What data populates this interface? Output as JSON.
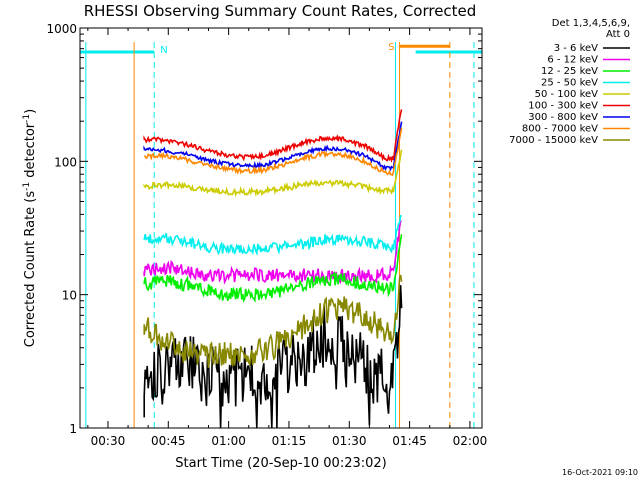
{
  "chart_data": {
    "type": "line",
    "title": "RHESSI Observing Summary Count Rates, Corrected",
    "xlabel": "Start Time (20-Sep-10 00:23:02)",
    "ylabel_main": "Corrected Count Rate (s",
    "ylabel_sup1": "-1",
    "ylabel_mid": " detector",
    "ylabel_sup2": "-1",
    "ylabel_end": ")",
    "x_unit": "minutes since 00:00 UT",
    "xlim": [
      23.05,
      123.0
    ],
    "ylim": [
      1,
      1000
    ],
    "yscale": "log",
    "x_ticks": [
      {
        "value": 30,
        "label": "00:30"
      },
      {
        "value": 45,
        "label": "00:45"
      },
      {
        "value": 60,
        "label": "01:00"
      },
      {
        "value": 75,
        "label": "01:15"
      },
      {
        "value": 90,
        "label": "01:30"
      },
      {
        "value": 105,
        "label": "01:45"
      },
      {
        "value": 120,
        "label": "02:00"
      }
    ],
    "y_ticks": [
      {
        "value": 1,
        "label": "1"
      },
      {
        "value": 10,
        "label": "10"
      },
      {
        "value": 100,
        "label": "100"
      },
      {
        "value": 1000,
        "label": "1000"
      }
    ],
    "legend_header": [
      "Det 1,3,4,5,6,9,",
      "Att 0"
    ],
    "legend_position": "right",
    "series": [
      {
        "name": "3 - 6 keV",
        "color": "#000000",
        "x": [
          39,
          44,
          49,
          54,
          59,
          64,
          69,
          74,
          79,
          84,
          88,
          92,
          96,
          101,
          103
        ],
        "y": [
          2.6,
          3.0,
          3.2,
          2.4,
          2.4,
          2.6,
          2.2,
          2.8,
          3.5,
          5.0,
          5.0,
          3.5,
          2.6,
          2.6,
          12
        ]
      },
      {
        "name": "6 - 12 keV",
        "color": "#ee00ee",
        "x": [
          39,
          44,
          49,
          54,
          59,
          64,
          69,
          74,
          79,
          84,
          89,
          94,
          99,
          101,
          103
        ],
        "y": [
          15,
          16,
          15,
          14,
          14,
          14,
          14,
          14,
          14,
          14,
          14,
          14,
          14,
          15,
          40
        ]
      },
      {
        "name": "12 - 25 keV",
        "color": "#00ee00",
        "x": [
          39,
          44,
          49,
          54,
          59,
          64,
          69,
          74,
          79,
          84,
          89,
          94,
          99,
          101,
          103
        ],
        "y": [
          12,
          13,
          12,
          11,
          10,
          10,
          10,
          11,
          12,
          13,
          13,
          12,
          11,
          11,
          30
        ]
      },
      {
        "name": "25 - 50 keV",
        "color": "#00eeee",
        "x": [
          39,
          44,
          49,
          54,
          59,
          64,
          69,
          74,
          79,
          84,
          89,
          94,
          99,
          101,
          103
        ],
        "y": [
          26,
          27,
          25,
          23,
          22,
          22,
          22,
          23,
          24,
          26,
          26,
          25,
          23,
          23,
          40
        ]
      },
      {
        "name": "50 - 100 keV",
        "color": "#cccc00",
        "x": [
          39,
          44,
          49,
          54,
          59,
          64,
          69,
          74,
          79,
          84,
          89,
          94,
          99,
          101,
          103
        ],
        "y": [
          65,
          67,
          65,
          62,
          59,
          59,
          60,
          63,
          67,
          70,
          68,
          64,
          60,
          60,
          120
        ]
      },
      {
        "name": "100 - 300 keV",
        "color": "#ee0000",
        "x": [
          39,
          44,
          49,
          54,
          59,
          64,
          69,
          74,
          79,
          84,
          89,
          94,
          99,
          101,
          103
        ],
        "y": [
          145,
          145,
          135,
          122,
          112,
          107,
          110,
          123,
          140,
          150,
          146,
          130,
          105,
          105,
          250
        ]
      },
      {
        "name": "300 - 800 keV",
        "color": "#0000ee",
        "x": [
          39,
          44,
          49,
          54,
          59,
          64,
          69,
          74,
          79,
          84,
          89,
          94,
          99,
          101,
          103
        ],
        "y": [
          122,
          121,
          114,
          103,
          96,
          92,
          94,
          104,
          118,
          125,
          122,
          110,
          90,
          90,
          200
        ]
      },
      {
        "name": "800 - 7000 keV",
        "color": "#ff8800",
        "x": [
          39,
          44,
          49,
          54,
          59,
          64,
          69,
          74,
          79,
          84,
          89,
          94,
          99,
          101,
          103
        ],
        "y": [
          110,
          110,
          104,
          95,
          88,
          84,
          86,
          95,
          107,
          114,
          111,
          100,
          82,
          82,
          180
        ]
      },
      {
        "name": "7000 - 15000 keV",
        "color": "#888800",
        "x": [
          39,
          44,
          49,
          54,
          59,
          64,
          69,
          74,
          79,
          84,
          89,
          94,
          99,
          101,
          103
        ],
        "y": [
          6.0,
          4.5,
          3.8,
          3.5,
          3.6,
          3.6,
          3.8,
          4.5,
          6.0,
          7.5,
          8.0,
          7.0,
          5.0,
          5.0,
          15
        ]
      }
    ],
    "night_bars": [
      {
        "label": "N",
        "from": 23.05,
        "to": 41.5,
        "color": "#00eeee"
      },
      {
        "label": "",
        "from": 106.5,
        "to": 123.0,
        "color": "#00eeee"
      }
    ],
    "saa_bar": {
      "label": "S",
      "from": 102.5,
      "to": 115.0,
      "color": "#ff8800"
    },
    "vlines": [
      {
        "x": 24.5,
        "color": "#00eeee",
        "style": "solid"
      },
      {
        "x": 36.5,
        "color": "#ff8800",
        "style": "solid"
      },
      {
        "x": 41.5,
        "color": "#00eeee",
        "style": "dashed"
      },
      {
        "x": 101.5,
        "color": "#00eeee",
        "style": "solid"
      },
      {
        "x": 102.5,
        "color": "#ff8800",
        "style": "solid"
      },
      {
        "x": 115.0,
        "color": "#ff8800",
        "style": "dashed"
      },
      {
        "x": 121.0,
        "color": "#00eeee",
        "style": "dashed"
      }
    ]
  },
  "footer_date": "16-Oct-2021 09:10"
}
